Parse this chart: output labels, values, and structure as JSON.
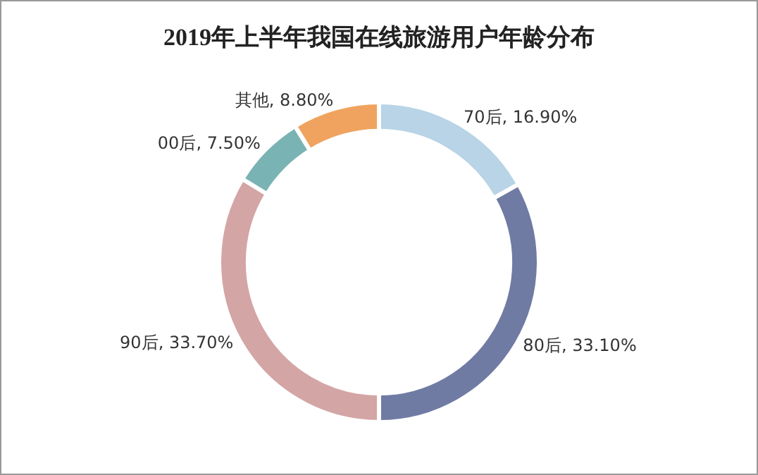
{
  "chart_data": {
    "type": "donut",
    "title": "2019年上半年我国在线旅游用户年龄分布",
    "categories": [
      "70后",
      "80后",
      "90后",
      "00后",
      "其他"
    ],
    "values": [
      16.9,
      33.1,
      33.7,
      7.5,
      8.8
    ],
    "colors": [
      "#b8d4e6",
      "#6f7ba3",
      "#d4a5a5",
      "#7ab3b3",
      "#f0a35e"
    ],
    "value_labels": [
      ", 16.90%",
      ", 33.10%",
      ", 33.70%",
      ", 7.50%",
      ", 8.80%"
    ],
    "legend": false
  }
}
